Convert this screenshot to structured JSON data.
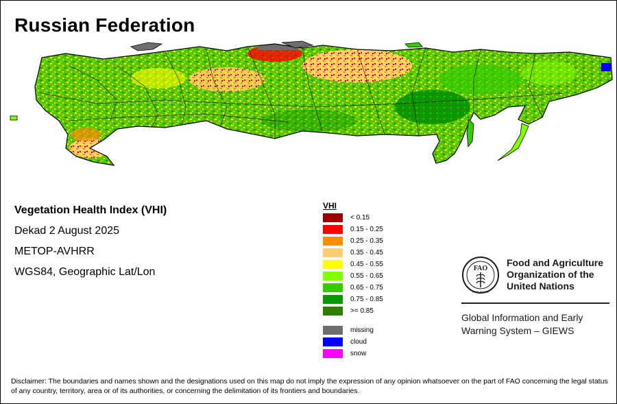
{
  "title": "Russian Federation",
  "info": {
    "index_name": "Vegetation Health Index (VHI)",
    "period": "Dekad 2 August 2025",
    "sensor": "METOP-AVHRR",
    "projection": "WGS84, Geographic Lat/Lon"
  },
  "legend": {
    "title": "VHI",
    "classes": [
      {
        "label": "< 0.15",
        "color": "#a00000"
      },
      {
        "label": "0.15 - 0.25",
        "color": "#ff0000"
      },
      {
        "label": "0.25 - 0.35",
        "color": "#ff8c00"
      },
      {
        "label": "0.35 - 0.45",
        "color": "#ffcc73"
      },
      {
        "label": "0.45 - 0.55",
        "color": "#ffff00"
      },
      {
        "label": "0.55 - 0.65",
        "color": "#80ff00"
      },
      {
        "label": "0.65 - 0.75",
        "color": "#33cc00"
      },
      {
        "label": "0.75 - 0.85",
        "color": "#0a9900"
      },
      {
        "label": ">= 0.85",
        "color": "#2e7d00"
      }
    ],
    "other": [
      {
        "label": "missing",
        "color": "#6e6e6e"
      },
      {
        "label": "cloud",
        "color": "#0000ff"
      },
      {
        "label": "snow",
        "color": "#ff00ff"
      }
    ]
  },
  "organization": {
    "logo_text": "FAO",
    "logo_motto": "FIAT PANIS",
    "name_lines": [
      "Food and Agriculture",
      "Organization of the",
      "United Nations"
    ],
    "system_lines": [
      "Global Information and Early",
      "Warning System – GIEWS"
    ]
  },
  "disclaimer": "Disclaimer: The boundaries and names shown and the designations used on this map do not imply the expression of any opinion whatsoever on the part of FAO concerning the legal status of any country, territory, area or of its authorities, or concerning the delimitation of its frontiers and boundaries."
}
